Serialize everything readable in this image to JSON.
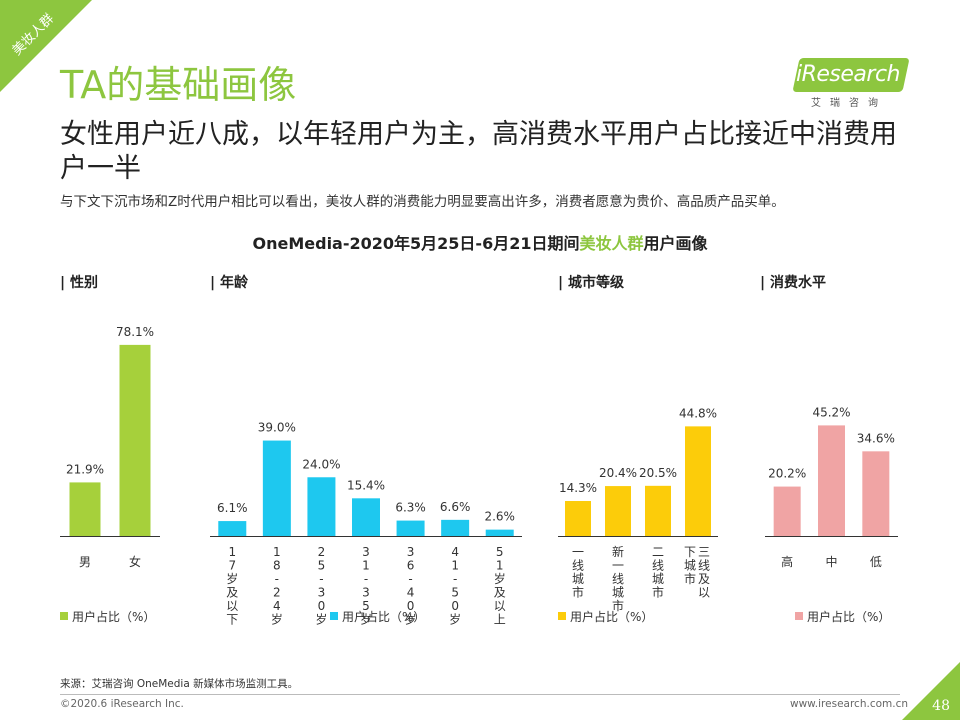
{
  "corner_tag": "美妆人群",
  "title": "TA的基础画像",
  "logo": {
    "text": "iResearch",
    "sub": "艾瑞咨询"
  },
  "subtitle": "女性用户近八成，以年轻用户为主，高消费水平用户占比接近中消费用户一半",
  "description": "与下文下沉市场和Z时代用户相比可以看出，美妆人群的消费能力明显要高出许多，消费者愿意为贵价、高品质产品买单。",
  "chart_title": {
    "prefix": "OneMedia-2020年5月25日-6月21日期间",
    "highlight": "美妆人群",
    "suffix": "用户画像"
  },
  "colors": {
    "accent": "#8dc63f",
    "gender": "#a6d03b",
    "age": "#1ec8ef",
    "city": "#fccc0a",
    "consumption": "#f0a4a4",
    "axis": "#333333"
  },
  "chart_data": [
    {
      "type": "bar",
      "title": "| 性别",
      "legend": "用户占比（%）",
      "color_key": "gender",
      "label_orientation": "horizontal",
      "ylim": [
        0,
        85
      ],
      "categories": [
        "男",
        "女"
      ],
      "values": [
        21.9,
        78.1
      ]
    },
    {
      "type": "bar",
      "title": "| 年龄",
      "legend": "用户占比（%）",
      "color_key": "age",
      "label_orientation": "vertical",
      "ylim": [
        0,
        85
      ],
      "categories": [
        "17岁及以下",
        "18-24岁",
        "25-30岁",
        "31-35岁",
        "36-40岁",
        "41-50岁",
        "51岁及以上"
      ],
      "values": [
        6.1,
        39.0,
        24.0,
        15.4,
        6.3,
        6.6,
        2.6
      ]
    },
    {
      "type": "bar",
      "title": "| 城市等级",
      "legend": "用户占比（%）",
      "color_key": "city",
      "label_orientation": "vertical",
      "ylim": [
        0,
        85
      ],
      "categories": [
        "一线城市",
        "新一线城市",
        "二线城市",
        "三线及以下城市"
      ],
      "values": [
        14.3,
        20.4,
        20.5,
        44.8
      ]
    },
    {
      "type": "bar",
      "title": "| 消费水平",
      "legend": "用户占比（%）",
      "color_key": "consumption",
      "label_orientation": "horizontal",
      "ylim": [
        0,
        85
      ],
      "categories": [
        "高",
        "中",
        "低"
      ],
      "values": [
        20.2,
        45.2,
        34.6
      ]
    }
  ],
  "footer": {
    "source": "来源：艾瑞咨询 OneMedia 新媒体市场监测工具。",
    "copyright": "©2020.6 iResearch Inc.",
    "website": "www.iresearch.com.cn",
    "page": "48"
  }
}
